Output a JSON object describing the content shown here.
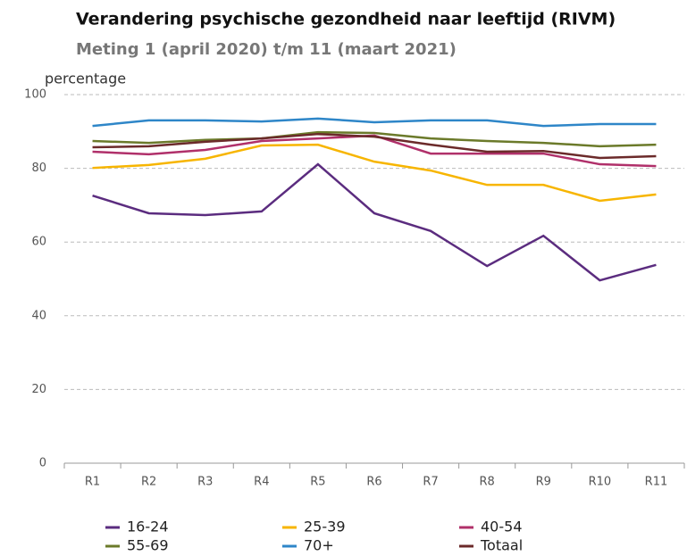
{
  "chart_data": {
    "type": "line",
    "title": "Verandering psychische gezondheid naar leeftijd (RIVM)",
    "subtitle": "Meting 1 (april 2020) t/m 11 (maart 2021)",
    "y_label": "percentage",
    "categories": [
      "R1",
      "R2",
      "R3",
      "R4",
      "R5",
      "R6",
      "R7",
      "R8",
      "R9",
      "R10",
      "R11"
    ],
    "ylim": [
      0,
      100
    ],
    "yticks": [
      0,
      20,
      40,
      60,
      80,
      100
    ],
    "grid": true,
    "series": [
      {
        "name": "16-24",
        "color": "#5b2c7f",
        "values": [
          72.6,
          67.8,
          67.3,
          68.3,
          81.1,
          67.8,
          63,
          53.5,
          61.7,
          49.6,
          53.8
        ]
      },
      {
        "name": "25-39",
        "color": "#f7b500",
        "values": [
          80.1,
          80.9,
          82.6,
          86.2,
          86.4,
          81.8,
          79.4,
          75.5,
          75.5,
          71.2,
          72.9
        ]
      },
      {
        "name": "40-54",
        "color": "#b0306a",
        "values": [
          84.5,
          83.8,
          85,
          87.4,
          88.1,
          88.9,
          84,
          84,
          84,
          81.1,
          80.6
        ]
      },
      {
        "name": "55-69",
        "color": "#6b7a2a",
        "values": [
          87.4,
          86.9,
          87.7,
          88.1,
          89.8,
          89.6,
          88.1,
          87.4,
          86.9,
          86,
          86.4
        ]
      },
      {
        "name": "70+",
        "color": "#2e86c8",
        "values": [
          91.5,
          93,
          93,
          92.7,
          93.5,
          92.5,
          93,
          93,
          91.5,
          92,
          92
        ]
      },
      {
        "name": "Totaal",
        "color": "#6b2a2a",
        "values": [
          85.7,
          86,
          87.2,
          88.1,
          89.3,
          88.6,
          86.4,
          84.5,
          84.7,
          82.8,
          83.3
        ]
      }
    ]
  }
}
